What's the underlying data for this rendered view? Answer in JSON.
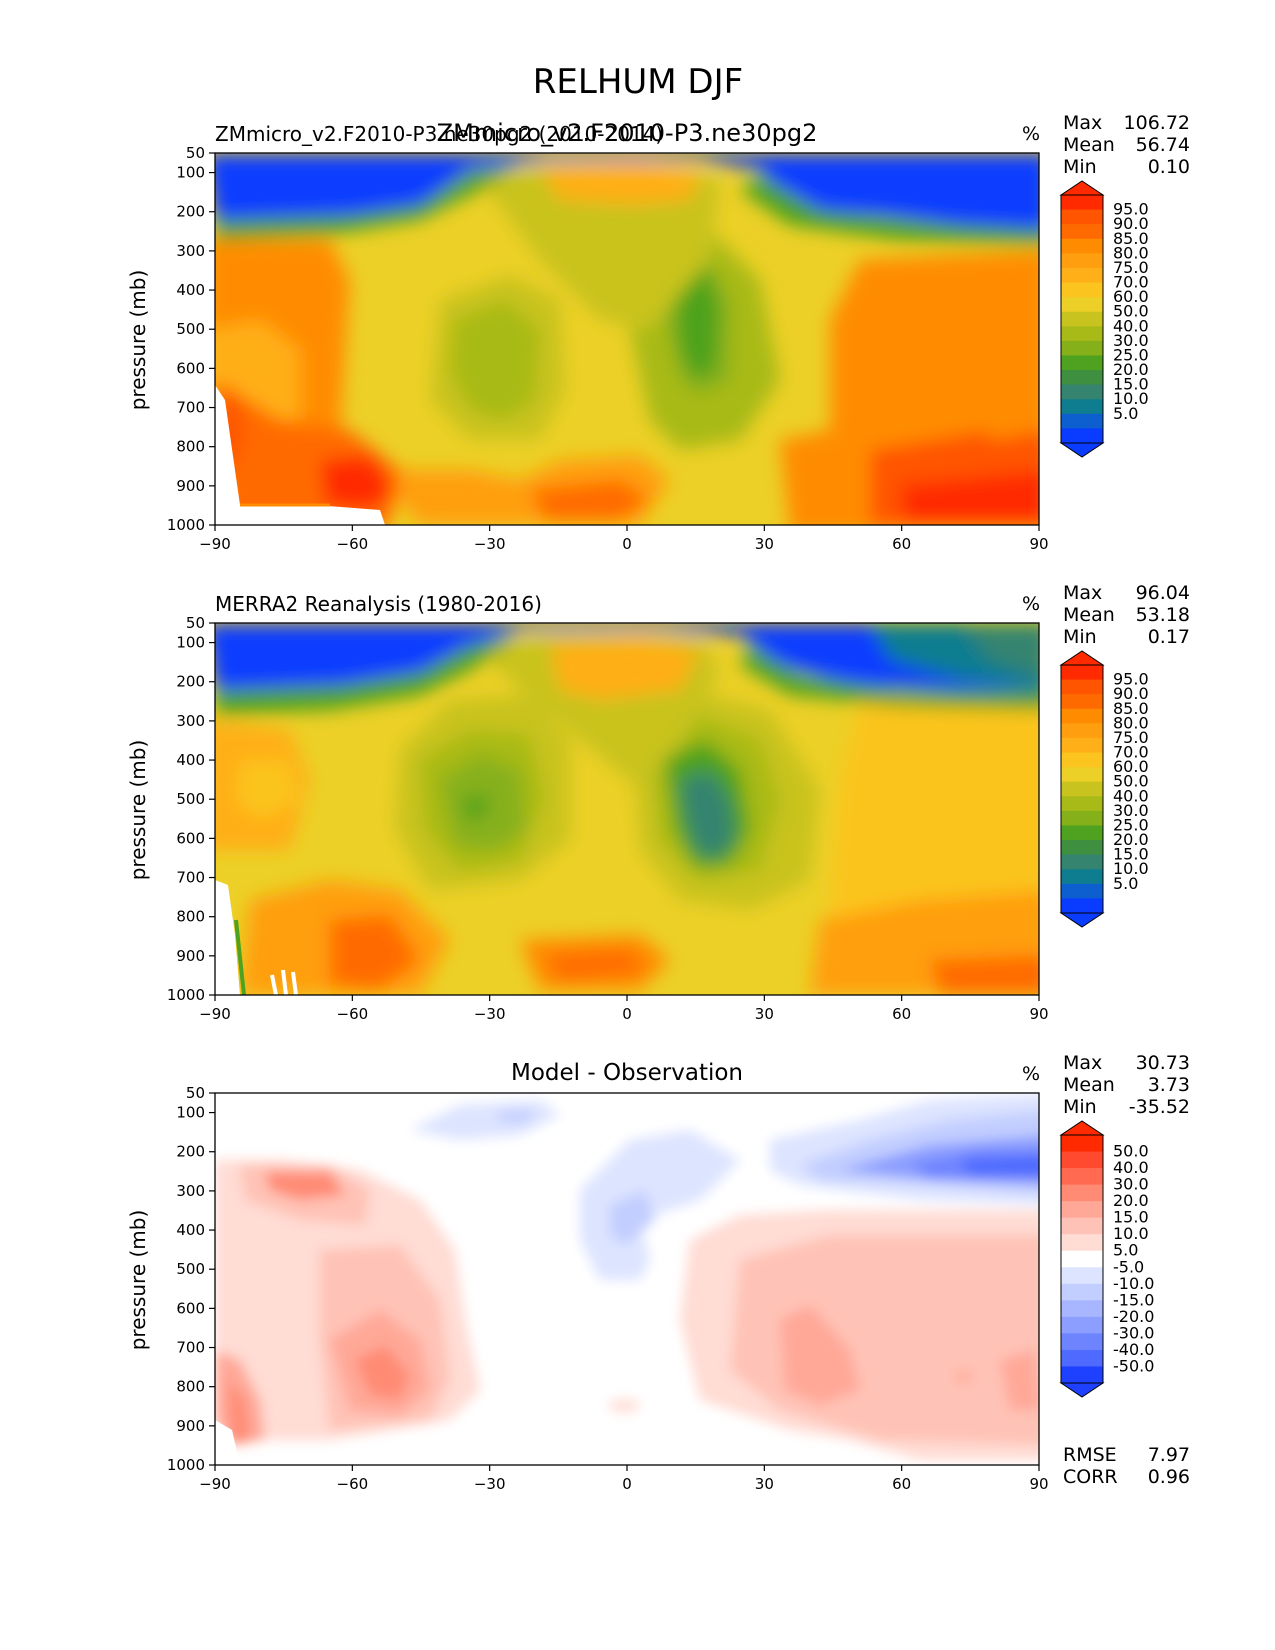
{
  "figure": {
    "suptitle": "RELHUM DJF",
    "panel1_overlap_title": "ZMmicro_v2.F2010-P3.ne30pg2"
  },
  "chart_data": [
    {
      "type": "heatmap",
      "name": "model",
      "title_left": "ZMmicro_v2.F2010-P3.ne30pg2 (2010-2014)",
      "title_center": "",
      "units": "%",
      "stats": [
        {
          "label": "Max",
          "value": "106.72"
        },
        {
          "label": "Mean",
          "value": "56.74"
        },
        {
          "label": "Min",
          "value": "0.10"
        }
      ],
      "xlabel": "",
      "ylabel": "pressure (mb)",
      "xlim": [
        -90,
        90
      ],
      "ylim": [
        1000,
        50
      ],
      "x_ticks": [
        "−90",
        "−60",
        "−30",
        "0",
        "30",
        "60",
        "90"
      ],
      "y_ticks": [
        "50",
        "100",
        "200",
        "300",
        "400",
        "500",
        "600",
        "700",
        "800",
        "900",
        "1000"
      ],
      "colorbar": {
        "labels": [
          "95.0",
          "90.0",
          "85.0",
          "80.0",
          "75.0",
          "70.0",
          "60.0",
          "50.0",
          "40.0",
          "30.0",
          "25.0",
          "20.0",
          "15.0",
          "10.0",
          "5.0"
        ],
        "colors": [
          "#ff2a00",
          "#ff5500",
          "#ff6a00",
          "#ff8c00",
          "#ff9f0f",
          "#ffaf18",
          "#fbc41f",
          "#ecd027",
          "#c9c31f",
          "#a8ba18",
          "#86b01a",
          "#4ea21f",
          "#3f8f41",
          "#358470",
          "#0f7d90",
          "#0d5fd0",
          "#0a3cff"
        ]
      }
    },
    {
      "type": "heatmap",
      "name": "observation",
      "title_left": "MERRA2 Reanalysis (1980-2016)",
      "title_center": "",
      "units": "%",
      "stats": [
        {
          "label": "Max",
          "value": "96.04"
        },
        {
          "label": "Mean",
          "value": "53.18"
        },
        {
          "label": "Min",
          "value": "0.17"
        }
      ],
      "xlabel": "",
      "ylabel": "pressure (mb)",
      "xlim": [
        -90,
        90
      ],
      "ylim": [
        1000,
        50
      ],
      "x_ticks": [
        "−90",
        "−60",
        "−30",
        "0",
        "30",
        "60",
        "90"
      ],
      "y_ticks": [
        "50",
        "100",
        "200",
        "300",
        "400",
        "500",
        "600",
        "700",
        "800",
        "900",
        "1000"
      ],
      "colorbar": {
        "labels": [
          "95.0",
          "90.0",
          "85.0",
          "80.0",
          "75.0",
          "70.0",
          "60.0",
          "50.0",
          "40.0",
          "30.0",
          "25.0",
          "20.0",
          "15.0",
          "10.0",
          "5.0"
        ],
        "colors": [
          "#ff2a00",
          "#ff5500",
          "#ff6a00",
          "#ff8c00",
          "#ff9f0f",
          "#ffaf18",
          "#fbc41f",
          "#ecd027",
          "#c9c31f",
          "#a8ba18",
          "#86b01a",
          "#4ea21f",
          "#3f8f41",
          "#358470",
          "#0f7d90",
          "#0d5fd0",
          "#0a3cff"
        ]
      }
    },
    {
      "type": "heatmap",
      "name": "difference",
      "title_left": "",
      "title_center": "Model - Observation",
      "units": "%",
      "stats": [
        {
          "label": "Max",
          "value": "30.73"
        },
        {
          "label": "Mean",
          "value": "3.73"
        },
        {
          "label": "Min",
          "value": "-35.52"
        }
      ],
      "extra_stats": [
        {
          "label": "RMSE",
          "value": "7.97"
        },
        {
          "label": "CORR",
          "value": "0.96"
        }
      ],
      "xlabel": "",
      "ylabel": "pressure (mb)",
      "xlim": [
        -90,
        90
      ],
      "ylim": [
        1000,
        50
      ],
      "x_ticks": [
        "−90",
        "−60",
        "−30",
        "0",
        "30",
        "60",
        "90"
      ],
      "y_ticks": [
        "50",
        "100",
        "200",
        "300",
        "400",
        "500",
        "600",
        "700",
        "800",
        "900",
        "1000"
      ],
      "colorbar": {
        "labels": [
          "50.0",
          "40.0",
          "30.0",
          "20.0",
          "15.0",
          "10.0",
          "5.0",
          "-5.0",
          "-10.0",
          "-15.0",
          "-20.0",
          "-30.0",
          "-40.0",
          "-50.0"
        ],
        "colors": [
          "#ff2a00",
          "#ff4a30",
          "#ff6a50",
          "#ff8b74",
          "#ffa898",
          "#ffc2b6",
          "#ffdcd4",
          "#ffffff",
          "#dde4ff",
          "#c2ceff",
          "#a7b6ff",
          "#8c9eff",
          "#6e84ff",
          "#4e6aff",
          "#1e40ff"
        ]
      }
    }
  ]
}
